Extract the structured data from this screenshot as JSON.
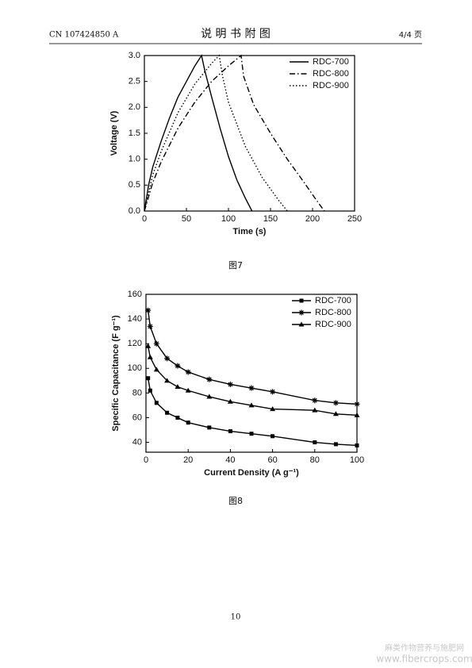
{
  "header": {
    "number": "CN 107424850 A",
    "title": "说 明 书 附 图",
    "page": "4/4 页"
  },
  "chart_data": [
    {
      "type": "line",
      "x_label": "Time (s)",
      "y_label": "Voltage (V)",
      "xlim": [
        0,
        250
      ],
      "xticks": [
        0,
        50,
        100,
        150,
        200,
        250
      ],
      "ylim": [
        0,
        3.0
      ],
      "yticks": [
        {
          "value": 0,
          "label": "0.0"
        },
        {
          "value": 0.5,
          "label": "0.5"
        },
        {
          "value": 1,
          "label": "1.0"
        },
        {
          "value": 1.5,
          "label": "1.5"
        },
        {
          "value": 2,
          "label": "2.0"
        },
        {
          "value": 2.5,
          "label": "2.5"
        },
        {
          "value": 3,
          "label": "3.0"
        }
      ],
      "legend": "upper right",
      "series": [
        {
          "name": "RDC-700",
          "color": "#000000",
          "dash": "solid",
          "x": [
            0,
            5,
            10,
            20,
            30,
            40,
            50,
            60,
            68,
            72,
            80,
            90,
            100,
            110,
            120,
            128
          ],
          "values": [
            0,
            0.5,
            0.85,
            1.35,
            1.8,
            2.2,
            2.5,
            2.8,
            3.0,
            2.7,
            2.2,
            1.6,
            1.05,
            0.6,
            0.25,
            0
          ]
        },
        {
          "name": "RDC-800",
          "color": "#000000",
          "dash": "dashdot",
          "x": [
            0,
            10,
            20,
            40,
            60,
            80,
            100,
            115,
            118,
            130,
            150,
            170,
            190,
            205,
            214
          ],
          "values": [
            0,
            0.55,
            0.95,
            1.6,
            2.1,
            2.5,
            2.8,
            3.0,
            2.6,
            2.05,
            1.5,
            1.0,
            0.55,
            0.2,
            0
          ]
        },
        {
          "name": "RDC-900",
          "color": "#000000",
          "dash": "dot",
          "x": [
            0,
            10,
            20,
            40,
            60,
            80,
            89,
            93,
            100,
            120,
            140,
            160,
            170
          ],
          "values": [
            0,
            0.7,
            1.15,
            1.9,
            2.45,
            2.85,
            3.0,
            2.6,
            2.1,
            1.25,
            0.65,
            0.2,
            0
          ]
        }
      ]
    },
    {
      "type": "line",
      "x_label": "Current Density (A g⁻¹)",
      "y_label": "Specific Capacitance (F g⁻¹)",
      "xlim": [
        0,
        100
      ],
      "xticks": [
        0,
        20,
        40,
        60,
        80,
        100
      ],
      "ylim": [
        32,
        160
      ],
      "yticks": [
        40,
        60,
        80,
        100,
        120,
        140,
        160
      ],
      "legend": "upper right",
      "series": [
        {
          "name": "RDC-700",
          "color": "#000000",
          "marker": "square",
          "x": [
            1,
            2,
            5,
            10,
            15,
            20,
            30,
            40,
            50,
            60,
            80,
            90,
            100
          ],
          "values": [
            92,
            82,
            72,
            64,
            60,
            56,
            52,
            49,
            47,
            45,
            40,
            38.5,
            37.5
          ]
        },
        {
          "name": "RDC-800",
          "color": "#000000",
          "marker": "star",
          "x": [
            1,
            2,
            5,
            10,
            15,
            20,
            30,
            40,
            50,
            60,
            80,
            90,
            100
          ],
          "values": [
            147,
            134,
            120,
            108,
            102,
            97,
            91,
            87,
            84,
            81,
            74,
            72,
            71
          ]
        },
        {
          "name": "RDC-900",
          "color": "#000000",
          "marker": "triangle",
          "x": [
            1,
            2,
            5,
            10,
            15,
            20,
            30,
            40,
            50,
            60,
            80,
            90,
            100
          ],
          "values": [
            118,
            109,
            99,
            90,
            85,
            82,
            77,
            73,
            70,
            67,
            66,
            63,
            62
          ]
        }
      ]
    }
  ],
  "captions": [
    "图7",
    "图8"
  ],
  "page_number": "10",
  "watermark": {
    "name": "麻类作物营养与施肥网",
    "url": "www.fibercrops.com"
  }
}
